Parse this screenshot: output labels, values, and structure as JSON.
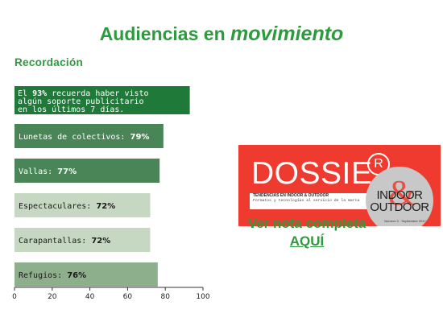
{
  "headline": {
    "main": "Audiencias en",
    "emphasis": "movimiento"
  },
  "section_title": "Recordación",
  "colors": {
    "accent_green": "#2e9a3e",
    "bar_dark": "#1f7a3a",
    "bar_medium": "#4a8558",
    "bar_light": "#c6d8c2",
    "bar_sage": "#8eaf8c",
    "dossier_red": "#ef3b2f"
  },
  "chart_data": {
    "type": "bar",
    "orientation": "horizontal",
    "title": "",
    "xlabel": "",
    "ylabel": "",
    "xlim": [
      0,
      100
    ],
    "xticks": [
      0,
      20,
      40,
      60,
      80,
      100
    ],
    "bars": [
      {
        "label_prefix": "El ",
        "value_text": "93%",
        "label_lines": [
          "El 93% recuerda haber visto",
          "algún soporte publicitario",
          "en los últimos 7 días."
        ],
        "value": 93,
        "color": "#1f7a3a",
        "text_color": "#ffffff"
      },
      {
        "label_prefix": "Lunetas de colectivos: ",
        "value_text": "79%",
        "value": 79,
        "color": "#4a8558",
        "text_color": "#ffffff"
      },
      {
        "label_prefix": "Vallas: ",
        "value_text": "77%",
        "value": 77,
        "color": "#4a8558",
        "text_color": "#ffffff"
      },
      {
        "label_prefix": "Espectaculares: ",
        "value_text": "72%",
        "value": 72,
        "color": "#c6d8c2",
        "text_color": "#1a1a1a"
      },
      {
        "label_prefix": "Carapantallas: ",
        "value_text": "72%",
        "value": 72,
        "color": "#c6d8c2",
        "text_color": "#1a1a1a"
      },
      {
        "label_prefix": "Refugios: ",
        "value_text": "76%",
        "value": 76,
        "color": "#8eaf8c",
        "text_color": "#1a1a1a"
      }
    ]
  },
  "dossier": {
    "title": "DOSSIE",
    "registered_mark": "R",
    "subtitle": "TENDENCIAS EN INDOOR & OUTDOOR",
    "tagline": "Formatos y tecnologías al servicio de la marca",
    "brand_top": "INDOOR",
    "brand_amp": "&",
    "brand_bottom": "OUTDOOR",
    "issue": "Número 3 · Septiembre 2017"
  },
  "cta": {
    "line1": "Ver nota completa",
    "link": "AQUÍ"
  }
}
